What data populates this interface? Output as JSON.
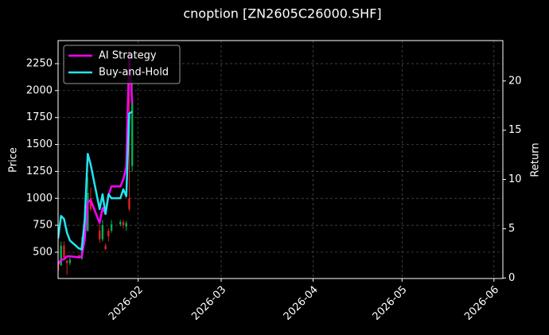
{
  "chart_data": {
    "type": "candlestick",
    "title": "cnoption [ZN2605C26000.SHF]",
    "ylabel": "Price",
    "y2label": "Return",
    "x": [
      "2026-01-05",
      "2026-01-06",
      "2026-01-07",
      "2026-01-08",
      "2026-01-09",
      "2026-01-12",
      "2026-01-13",
      "2026-01-14",
      "2026-01-15",
      "2026-01-16",
      "2026-01-19",
      "2026-01-20",
      "2026-01-21",
      "2026-01-22",
      "2026-01-23",
      "2026-01-26",
      "2026-01-27",
      "2026-01-28",
      "2026-01-29",
      "2026-01-30"
    ],
    "open": [
      400,
      380,
      560,
      420,
      400,
      470,
      440,
      600,
      700,
      1000,
      700,
      620,
      560,
      700,
      700,
      760,
      780,
      740,
      1000,
      1300
    ],
    "high": [
      420,
      600,
      600,
      430,
      450,
      480,
      640,
      720,
      1200,
      1100,
      760,
      800,
      580,
      720,
      800,
      800,
      800,
      790,
      2350,
      2100
    ],
    "low": [
      280,
      370,
      440,
      290,
      380,
      440,
      430,
      580,
      690,
      880,
      590,
      600,
      520,
      600,
      680,
      740,
      720,
      700,
      880,
      1250
    ],
    "close": [
      330,
      560,
      450,
      400,
      430,
      450,
      560,
      680,
      1050,
      900,
      620,
      750,
      530,
      650,
      760,
      780,
      750,
      770,
      900,
      1900
    ],
    "up_color": "#00b050",
    "down_color": "#e02020",
    "series": [
      {
        "name": "AI Strategy",
        "color": "#ff00ff",
        "axis": "y2",
        "values": [
          1.4,
          1.85,
          1.9,
          2.2,
          2.2,
          2.1,
          2.2,
          4.0,
          7.7,
          7.9,
          5.6,
          7.1,
          6.5,
          8.4,
          9.3,
          9.3,
          10.0,
          11.3,
          23.0,
          17.7
        ]
      },
      {
        "name": "Buy-and-Hold",
        "color": "#22e5f0",
        "axis": "y2",
        "values": [
          4.0,
          6.3,
          6.0,
          4.6,
          3.8,
          3.0,
          2.9,
          6.0,
          12.6,
          11.5,
          7.0,
          8.5,
          6.5,
          8.5,
          8.1,
          8.1,
          9.0,
          8.3,
          16.7,
          16.9
        ]
      }
    ],
    "xlim": [
      "2026-01-05",
      "2026-06-04"
    ],
    "xticks": [
      {
        "value": "2026-02-01",
        "label": "2026-02"
      },
      {
        "value": "2026-03-01",
        "label": "2026-03"
      },
      {
        "value": "2026-04-01",
        "label": "2026-04"
      },
      {
        "value": "2026-05-01",
        "label": "2026-05"
      },
      {
        "value": "2026-06-01",
        "label": "2026-06"
      }
    ],
    "ylim": [
      256,
      2464
    ],
    "yticks": [
      500,
      750,
      1000,
      1250,
      1500,
      1750,
      2000,
      2250
    ],
    "y2lim": [
      -0.05,
      24.1
    ],
    "y2ticks": [
      0,
      5,
      10,
      15,
      20
    ],
    "grid": true,
    "legend": "upper left"
  }
}
